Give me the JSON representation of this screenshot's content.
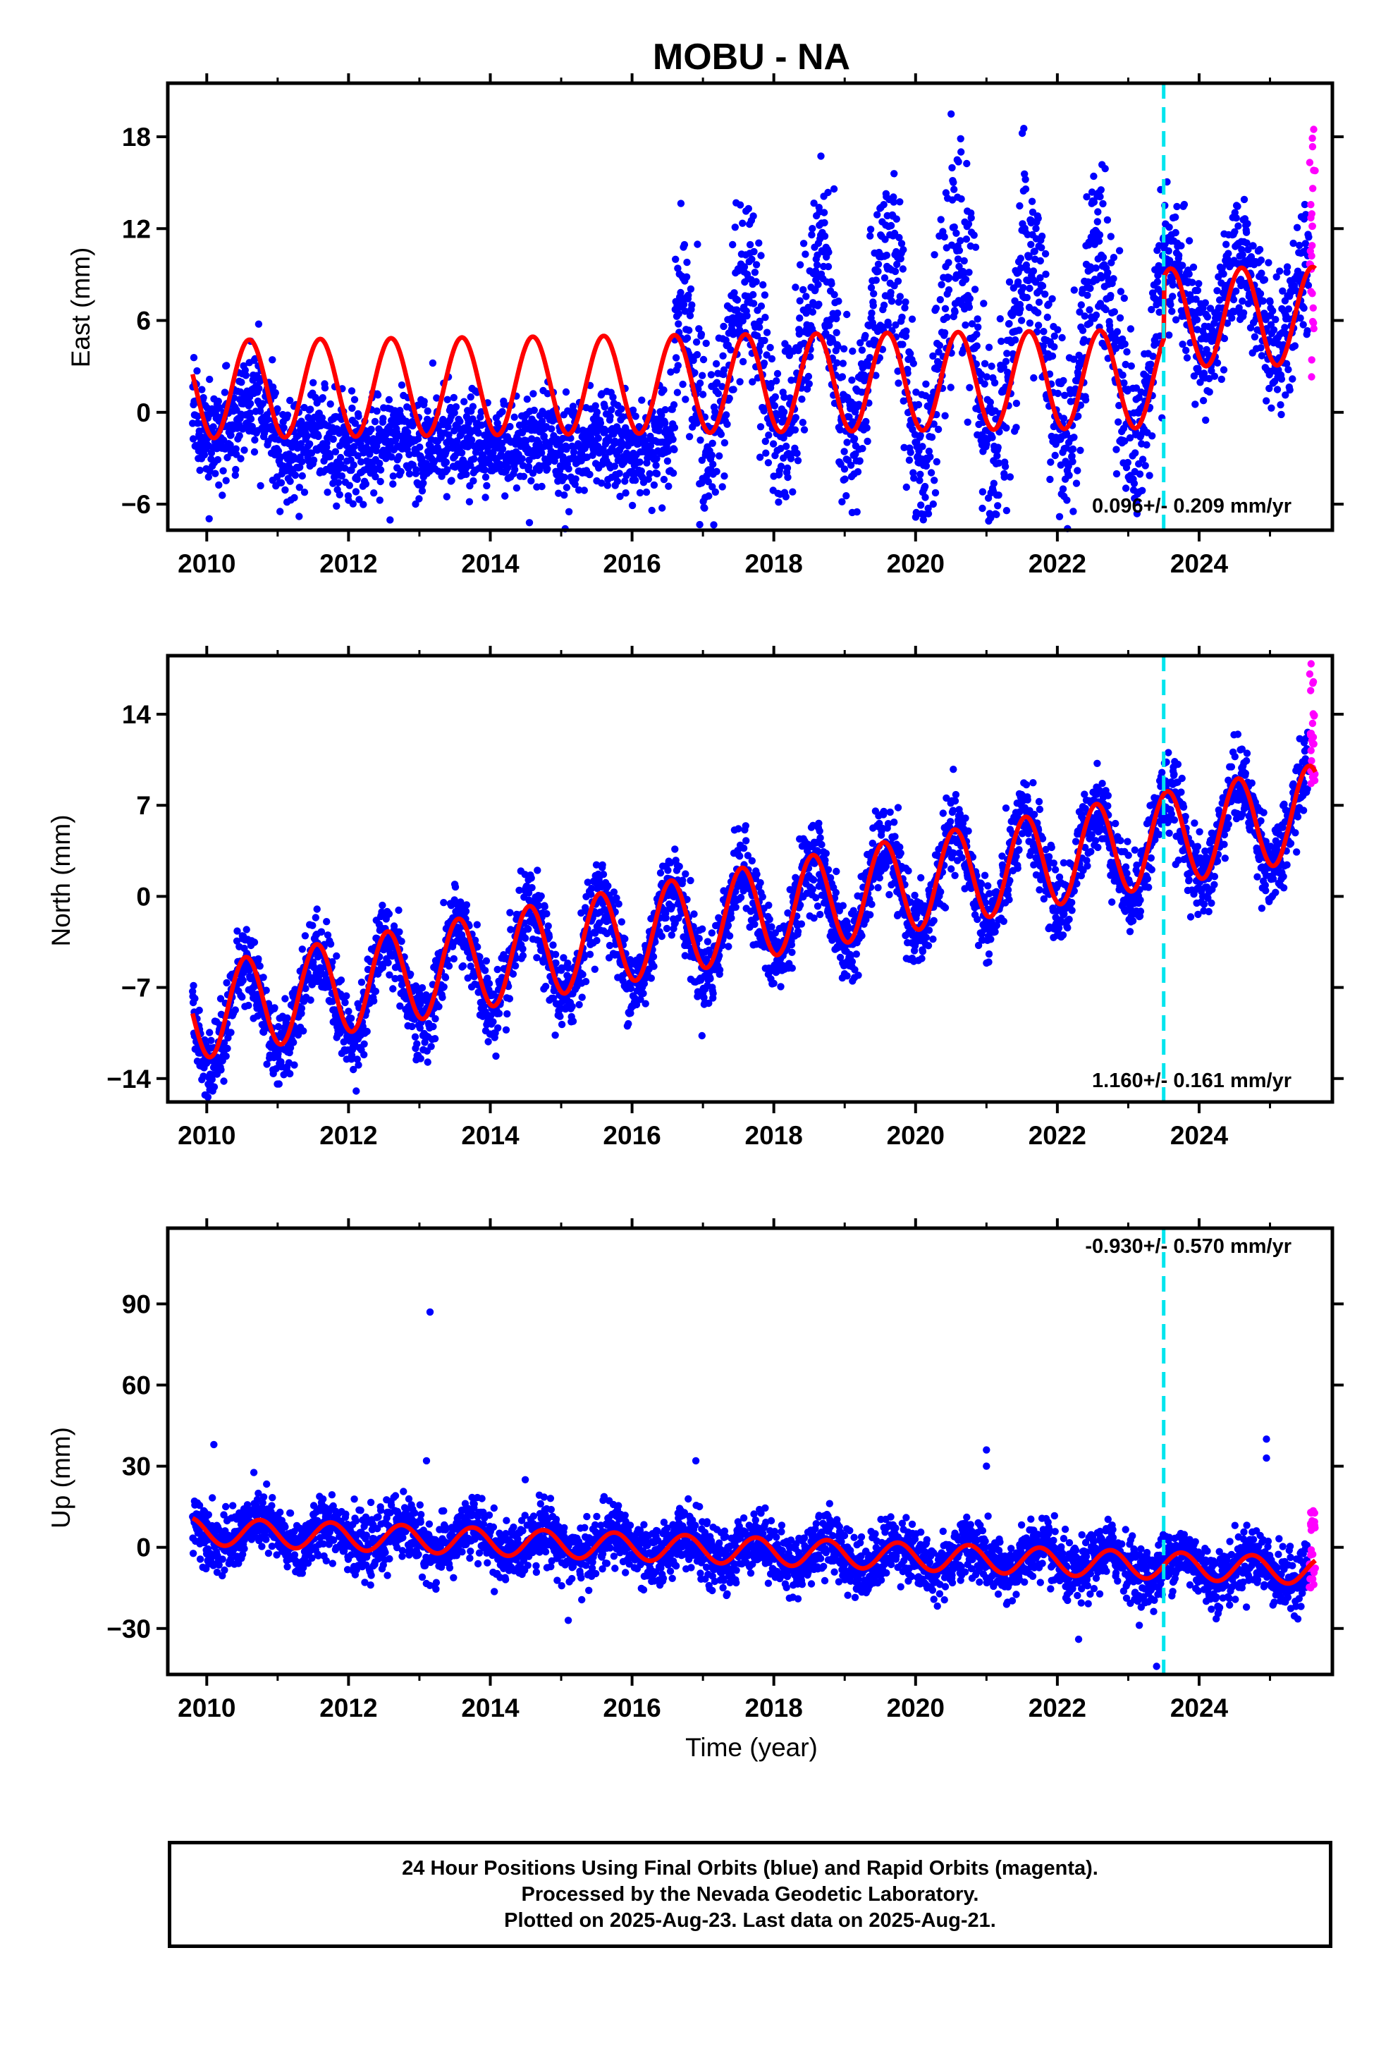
{
  "title": "MOBU - NA",
  "footer": {
    "line1": "24 Hour Positions Using Final Orbits (blue) and Rapid Orbits (magenta).",
    "line2": "Processed by the Nevada Geodetic Laboratory.",
    "line3": "Plotted on 2025-Aug-23. Last data on 2025-Aug-21."
  },
  "colors": {
    "final_orbits": "#0000ff",
    "rapid_orbits": "#ff00ff",
    "model_fit": "#ff0000",
    "equipment_change": "#00e5ee"
  },
  "xaxis": {
    "label": "Time (year)",
    "ticks": [
      "2010",
      "2012",
      "2014",
      "2016",
      "2018",
      "2020",
      "2022",
      "2024"
    ]
  },
  "chart_data": [
    {
      "type": "scatter",
      "name": "east",
      "ylabel": "East (mm)",
      "rate_label": "0.096+/- 0.209 mm/yr",
      "xlim": [
        2009.45,
        2025.88
      ],
      "ylim": [
        -7.7,
        21.5
      ],
      "yticks": [
        -6,
        0,
        6,
        12,
        18
      ],
      "xticks": [
        2010,
        2012,
        2014,
        2016,
        2018,
        2020,
        2022,
        2024
      ],
      "data_start": 2009.8,
      "rapid_start": 2025.55,
      "data_end": 2025.64,
      "equipment_change": 2023.5,
      "series_segments": [
        {
          "start": 2009.8,
          "mean": -0.5,
          "amplitude": 1.0,
          "noise": 1.7
        },
        {
          "start": 2011.0,
          "mean": -2.0,
          "amplitude": 0.4,
          "noise": 1.6
        },
        {
          "start": 2016.6,
          "mean": 3.0,
          "amplitude": 5.0,
          "noise": 2.8
        },
        {
          "start": 2018.6,
          "mean": 4.0,
          "amplitude": 6.5,
          "noise": 3.2
        },
        {
          "start": 2023.5,
          "mean": 7.0,
          "amplitude": 3.0,
          "noise": 2.0
        }
      ],
      "model": {
        "mean": 1.5,
        "slope": 0.05,
        "amplitude": 3.2,
        "peak_phase": 0.6,
        "step_year": 2023.5,
        "step": 4.0
      },
      "rapid_range": [
        2,
        19
      ]
    },
    {
      "type": "scatter",
      "name": "north",
      "ylabel": "North (mm)",
      "rate_label": "1.160+/- 0.161 mm/yr",
      "xlim": [
        2009.45,
        2025.88
      ],
      "ylim": [
        -15.8,
        18.5
      ],
      "yticks": [
        -14,
        -7,
        0,
        7,
        14
      ],
      "xticks": [
        2010,
        2012,
        2014,
        2016,
        2018,
        2020,
        2022,
        2024
      ],
      "data_start": 2009.8,
      "rapid_start": 2025.55,
      "data_end": 2025.64,
      "equipment_change": 2023.5,
      "trend": {
        "start_year": 2009.8,
        "start_value": -9.5,
        "slope": 1.0
      },
      "seasonal": {
        "amplitude": 3.6,
        "peak_phase": 0.55
      },
      "noise": 1.5,
      "model": {
        "start_year": 2009.8,
        "start_value": -9.0,
        "slope": 0.98,
        "amplitude": 3.6,
        "peak_phase": 0.55
      },
      "rapid_range": [
        8,
        18
      ]
    },
    {
      "type": "scatter",
      "name": "up",
      "ylabel": "Up (mm)",
      "rate_label": "-0.930+/- 0.570 mm/yr",
      "xlim": [
        2009.45,
        2025.88
      ],
      "ylim": [
        -47,
        118
      ],
      "yticks": [
        -30,
        0,
        30,
        60,
        90
      ],
      "xticks": [
        2010,
        2012,
        2014,
        2016,
        2018,
        2020,
        2022,
        2024
      ],
      "data_start": 2009.8,
      "rapid_start": 2025.55,
      "data_end": 2025.64,
      "equipment_change": 2023.5,
      "trend": {
        "start_year": 2009.8,
        "start_value": 6.0,
        "slope": -0.93
      },
      "seasonal": {
        "amplitude": 5.0,
        "peak_phase": 0.75
      },
      "noise": 5.5,
      "outliers": [
        {
          "x": 2010.1,
          "y": 38
        },
        {
          "x": 2013.15,
          "y": 87
        },
        {
          "x": 2013.1,
          "y": 32
        },
        {
          "x": 2015.1,
          "y": -27
        },
        {
          "x": 2016.9,
          "y": 32
        },
        {
          "x": 2021.0,
          "y": 36
        },
        {
          "x": 2021.0,
          "y": 30
        },
        {
          "x": 2022.3,
          "y": -34
        },
        {
          "x": 2023.4,
          "y": -44
        },
        {
          "x": 2024.95,
          "y": 40
        },
        {
          "x": 2024.95,
          "y": 33
        }
      ],
      "model": {
        "start_year": 2009.8,
        "start_value": 6.0,
        "slope": -0.93,
        "amplitude": 5.0,
        "peak_phase": 0.75
      },
      "rapid_range": [
        -17,
        14
      ]
    }
  ]
}
